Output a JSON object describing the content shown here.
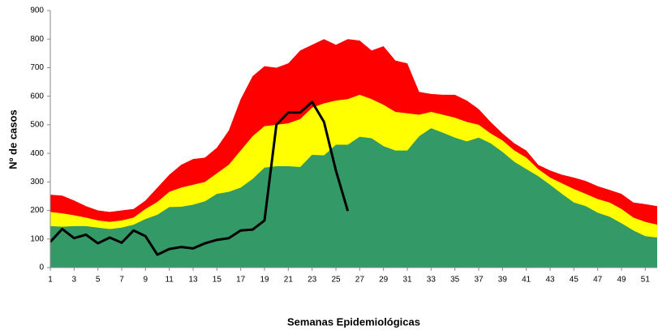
{
  "chart_data": {
    "type": "area",
    "xlabel": "Semanas Epidemiológicas",
    "ylabel": "Nº de casos",
    "x": [
      1,
      2,
      3,
      4,
      5,
      6,
      7,
      8,
      9,
      10,
      11,
      12,
      13,
      14,
      15,
      16,
      17,
      18,
      19,
      20,
      21,
      22,
      23,
      24,
      25,
      26,
      27,
      28,
      29,
      30,
      31,
      32,
      33,
      34,
      35,
      36,
      37,
      38,
      39,
      40,
      41,
      42,
      43,
      44,
      45,
      46,
      47,
      48,
      49,
      50,
      51,
      52
    ],
    "xlim": [
      1,
      52
    ],
    "xticks": [
      1,
      3,
      5,
      7,
      9,
      11,
      13,
      15,
      17,
      19,
      21,
      23,
      25,
      27,
      29,
      31,
      33,
      35,
      37,
      39,
      41,
      43,
      45,
      47,
      49,
      51
    ],
    "ylim": [
      0,
      900
    ],
    "yticks": [
      0,
      100,
      200,
      300,
      400,
      500,
      600,
      700,
      800,
      900
    ],
    "series": [
      {
        "color": "#ff0000",
        "values": [
          255,
          252,
          235,
          215,
          200,
          195,
          200,
          205,
          235,
          280,
          325,
          360,
          380,
          385,
          420,
          480,
          590,
          670,
          705,
          700,
          715,
          760,
          780,
          800,
          780,
          800,
          795,
          760,
          775,
          725,
          715,
          615,
          608,
          605,
          605,
          585,
          555,
          510,
          470,
          435,
          410,
          360,
          340,
          325,
          315,
          303,
          285,
          272,
          258,
          228,
          222,
          215
        ]
      },
      {
        "color": "#ffff00",
        "values": [
          195,
          190,
          183,
          175,
          165,
          160,
          165,
          175,
          205,
          230,
          265,
          280,
          290,
          300,
          330,
          360,
          410,
          460,
          495,
          500,
          505,
          520,
          560,
          575,
          585,
          590,
          605,
          590,
          570,
          545,
          540,
          535,
          545,
          535,
          525,
          510,
          500,
          470,
          445,
          410,
          385,
          345,
          315,
          295,
          275,
          258,
          240,
          228,
          205,
          175,
          160,
          150
        ]
      },
      {
        "color": "#339966",
        "values": [
          145,
          143,
          145,
          145,
          140,
          135,
          140,
          150,
          170,
          185,
          212,
          213,
          220,
          232,
          258,
          265,
          280,
          310,
          350,
          355,
          355,
          352,
          395,
          393,
          430,
          430,
          458,
          453,
          425,
          410,
          410,
          460,
          488,
          472,
          455,
          442,
          455,
          435,
          405,
          370,
          345,
          320,
          290,
          258,
          228,
          215,
          192,
          178,
          155,
          130,
          110,
          105
        ]
      },
      {
        "color": "#000000",
        "line": true,
        "values": [
          90,
          135,
          103,
          115,
          85,
          105,
          87,
          130,
          110,
          45,
          65,
          72,
          67,
          85,
          97,
          103,
          130,
          133,
          165,
          500,
          543,
          543,
          580,
          510,
          340,
          198,
          null,
          null,
          null,
          null,
          null,
          null,
          null,
          null,
          null,
          null,
          null,
          null,
          null,
          null,
          null,
          null,
          null,
          null,
          null,
          null,
          null,
          null,
          null,
          null,
          null,
          null
        ]
      }
    ]
  }
}
